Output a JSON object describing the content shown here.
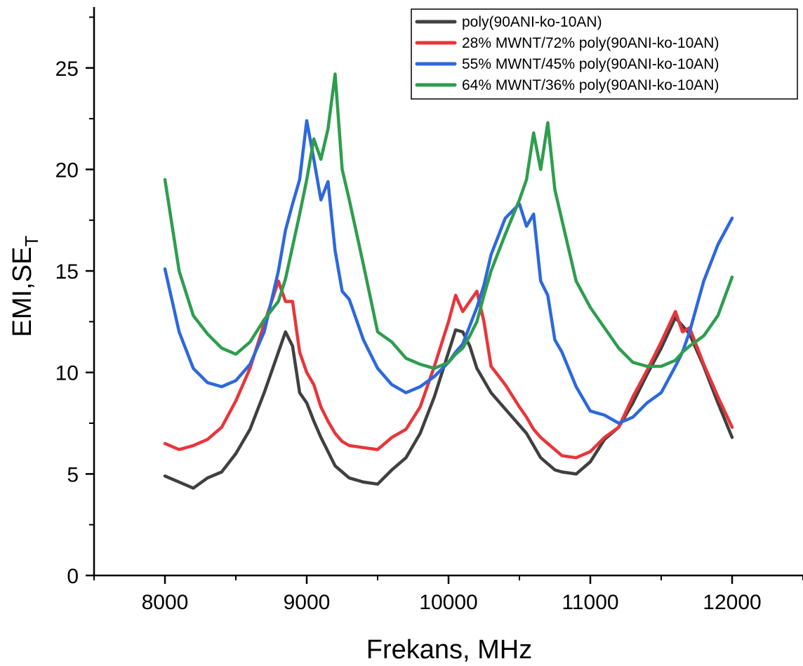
{
  "chart_data": {
    "type": "line",
    "xlabel": "Frekans, MHz",
    "ylabel_main": "EMI,SE",
    "ylabel_sub": "T",
    "xlim": [
      7500,
      12500
    ],
    "ylim": [
      0,
      28
    ],
    "x_ticks": [
      8000,
      9000,
      10000,
      11000,
      12000
    ],
    "y_ticks": [
      0,
      5,
      10,
      15,
      20,
      25
    ],
    "grid": false,
    "legend_position": "top-right",
    "x": [
      8000,
      8100,
      8200,
      8300,
      8400,
      8500,
      8600,
      8700,
      8800,
      8850,
      8900,
      8950,
      9000,
      9050,
      9100,
      9150,
      9200,
      9250,
      9300,
      9400,
      9500,
      9600,
      9700,
      9800,
      9900,
      10000,
      10050,
      10100,
      10150,
      10200,
      10250,
      10300,
      10400,
      10500,
      10550,
      10600,
      10650,
      10700,
      10750,
      10800,
      10900,
      11000,
      11100,
      11200,
      11300,
      11400,
      11500,
      11600,
      11650,
      11700,
      11800,
      11900,
      12000
    ],
    "series": [
      {
        "name": "poly(90ANI-ko-10AN)",
        "color": "#404040",
        "values": [
          4.9,
          4.6,
          4.3,
          4.8,
          5.1,
          6.0,
          7.2,
          9.0,
          11.0,
          12.0,
          11.3,
          9.0,
          8.5,
          7.6,
          6.8,
          6.1,
          5.4,
          5.1,
          4.8,
          4.6,
          4.5,
          5.2,
          5.8,
          7.0,
          8.8,
          11.0,
          12.1,
          12.0,
          11.3,
          10.2,
          9.6,
          9.0,
          8.2,
          7.4,
          7.0,
          6.4,
          5.8,
          5.5,
          5.2,
          5.1,
          5.0,
          5.6,
          6.7,
          7.3,
          8.5,
          9.9,
          11.2,
          12.7,
          12.3,
          11.9,
          10.3,
          8.5,
          6.8
        ]
      },
      {
        "name": "28% MWNT/72% poly(90ANI-ko-10AN)",
        "color": "#e8353a",
        "values": [
          6.5,
          6.2,
          6.4,
          6.7,
          7.3,
          8.6,
          10.2,
          12.4,
          14.5,
          13.5,
          13.5,
          11.0,
          10.0,
          9.4,
          8.3,
          7.6,
          7.0,
          6.6,
          6.4,
          6.3,
          6.2,
          6.8,
          7.2,
          8.3,
          10.3,
          12.5,
          13.8,
          13.0,
          13.5,
          14.0,
          12.5,
          10.3,
          9.4,
          8.3,
          7.8,
          7.2,
          6.8,
          6.5,
          6.2,
          5.9,
          5.8,
          6.1,
          6.8,
          7.3,
          8.8,
          10.1,
          11.5,
          13.0,
          12.0,
          12.2,
          10.4,
          8.8,
          7.3
        ]
      },
      {
        "name": "55% MWNT/45% poly(90ANI-ko-10AN)",
        "color": "#2d68dc",
        "values": [
          15.1,
          12.0,
          10.2,
          9.5,
          9.3,
          9.6,
          10.4,
          12.0,
          15.0,
          17.0,
          18.3,
          19.5,
          22.4,
          20.5,
          18.5,
          19.4,
          16.0,
          14.0,
          13.6,
          11.6,
          10.2,
          9.4,
          9.0,
          9.3,
          9.8,
          10.5,
          11.0,
          11.4,
          12.3,
          13.2,
          14.3,
          15.8,
          17.6,
          18.3,
          17.2,
          17.8,
          14.5,
          13.8,
          11.6,
          11.0,
          9.3,
          8.1,
          7.9,
          7.5,
          7.8,
          8.5,
          9.0,
          10.3,
          11.0,
          12.0,
          14.5,
          16.3,
          17.6
        ]
      },
      {
        "name": "64% MWNT/36% poly(90ANI-ko-10AN)",
        "color": "#2e9d4e",
        "values": [
          19.5,
          15.0,
          12.8,
          11.9,
          11.2,
          10.9,
          11.5,
          12.6,
          13.5,
          14.6,
          16.2,
          17.8,
          19.5,
          21.5,
          20.5,
          22.0,
          24.7,
          20.0,
          18.5,
          15.3,
          12.0,
          11.5,
          10.7,
          10.4,
          10.2,
          10.5,
          10.9,
          11.2,
          11.8,
          12.5,
          13.8,
          15.0,
          16.8,
          18.5,
          19.5,
          21.8,
          20.0,
          22.3,
          19.0,
          17.5,
          14.5,
          13.2,
          12.2,
          11.2,
          10.5,
          10.3,
          10.3,
          10.6,
          11.0,
          11.3,
          11.8,
          12.8,
          14.7
        ]
      }
    ]
  }
}
